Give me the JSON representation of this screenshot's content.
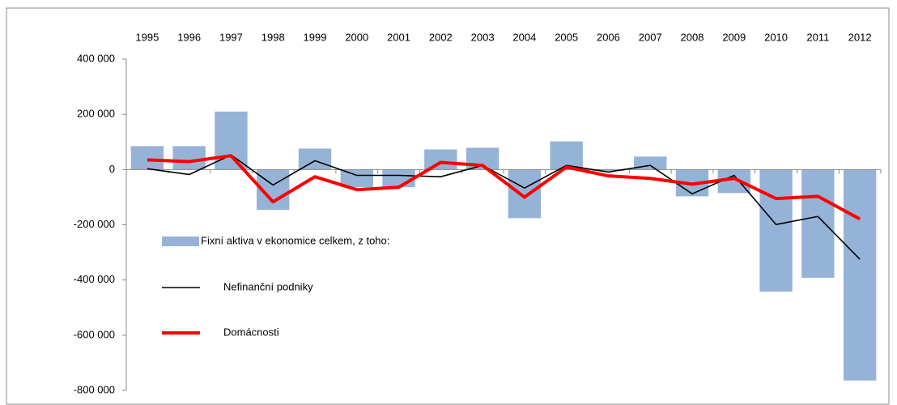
{
  "chart_data": {
    "type": "bar_line",
    "categories": [
      "1995",
      "1996",
      "1997",
      "1998",
      "1999",
      "2000",
      "2001",
      "2002",
      "2003",
      "2004",
      "2005",
      "2006",
      "2007",
      "2008",
      "2009",
      "2010",
      "2011",
      "2012"
    ],
    "series": [
      {
        "name": "Fixní aktiva v ekonomice celkem, z toho:",
        "type": "bar",
        "color": "#95b3d7",
        "values": [
          85000,
          85000,
          210000,
          -146000,
          76000,
          -64000,
          -64000,
          73000,
          79000,
          -176000,
          102000,
          -5000,
          47000,
          -97000,
          -85000,
          -442000,
          -392000,
          -764000
        ]
      },
      {
        "name": "Nefinanční podniky",
        "type": "line",
        "color": "#000000",
        "values": [
          3000,
          -18000,
          53000,
          -56000,
          32000,
          -21000,
          -21000,
          -26000,
          15000,
          -67000,
          15000,
          -9000,
          15000,
          -88000,
          -21000,
          -199000,
          -170000,
          -325000
        ]
      },
      {
        "name": "Domácnosti",
        "type": "line",
        "color": "#ff0000",
        "values": [
          35000,
          29000,
          50000,
          -117000,
          -26000,
          -73000,
          -64000,
          26000,
          15000,
          -100000,
          9000,
          -23000,
          -32000,
          -53000,
          -32000,
          -105000,
          -97000,
          -179000
        ]
      }
    ],
    "ylim": [
      -800000,
      400000
    ],
    "yticks": [
      {
        "value": -800000,
        "label": "-800 000"
      },
      {
        "value": -600000,
        "label": "-600 000"
      },
      {
        "value": -400000,
        "label": "-400 000"
      },
      {
        "value": -200000,
        "label": "-200 000"
      },
      0,
      {
        "value": 200000,
        "label": "200 000"
      },
      {
        "value": 400000,
        "label": "400 000"
      }
    ],
    "legend": "lower left"
  }
}
